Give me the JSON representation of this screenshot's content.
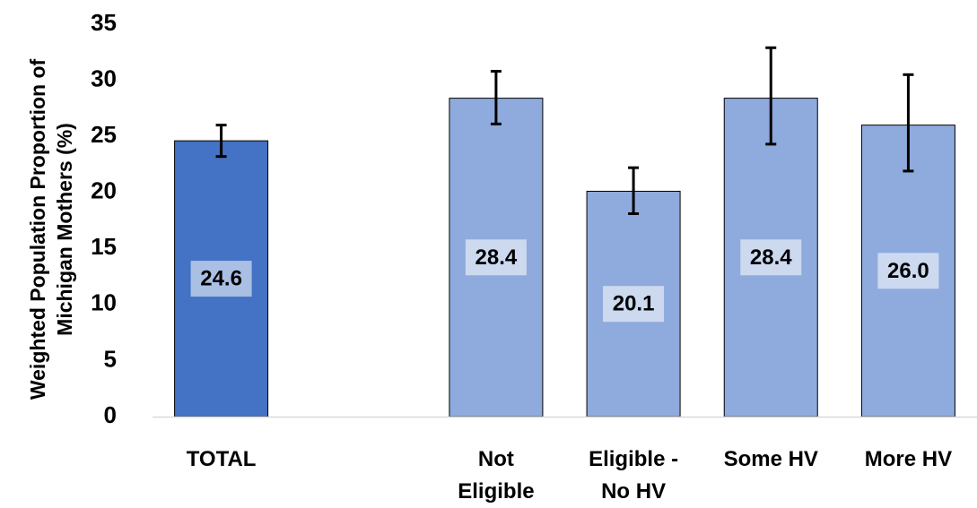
{
  "chart_data": {
    "type": "bar",
    "title": "",
    "xlabel": "",
    "ylabel": "Weighted Population Proportion of Michigan Mothers (%)",
    "ylabel_lines": [
      "Weighted Population Proportion of",
      "Michigan Mothers (%)"
    ],
    "ylim": [
      0,
      35
    ],
    "yticks": [
      0,
      5,
      10,
      15,
      20,
      25,
      30,
      35
    ],
    "grid": false,
    "legend": "none",
    "categories": [
      "TOTAL",
      "",
      "Not Eligible",
      "Eligible - No HV",
      "Some HV",
      "More HV"
    ],
    "category_lines": [
      [
        "TOTAL"
      ],
      [],
      [
        "Not",
        "Eligible"
      ],
      [
        "Eligible -",
        "No HV"
      ],
      [
        "Some HV"
      ],
      [
        "More HV"
      ]
    ],
    "values": [
      24.6,
      null,
      28.4,
      20.1,
      28.4,
      26.0
    ],
    "data_labels": [
      "24.6",
      "",
      "28.4",
      "20.1",
      "28.4",
      "26.0"
    ],
    "error_bars": [
      {
        "low": 23.2,
        "high": 26.0
      },
      null,
      {
        "low": 26.1,
        "high": 30.8
      },
      {
        "low": 18.1,
        "high": 22.2
      },
      {
        "low": 24.3,
        "high": 32.9
      },
      {
        "low": 21.9,
        "high": 30.5
      }
    ],
    "colors": [
      "#4472C4",
      null,
      "#8FAADC",
      "#8FAADC",
      "#8FAADC",
      "#8FAADC"
    ]
  }
}
